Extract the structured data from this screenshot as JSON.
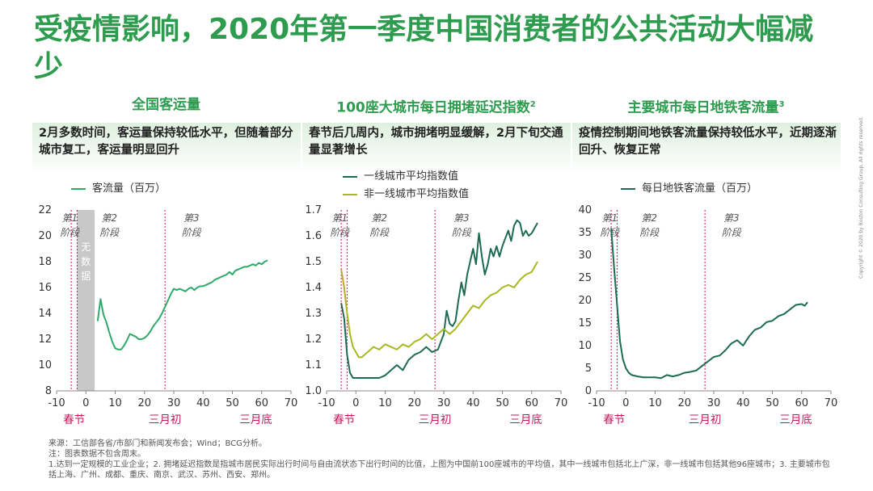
{
  "title": "受疫情影响，2020年第一季度中国消费者的公共活动大幅减少",
  "footer": {
    "source": "来源：工信部各省/市部门和新闻发布会；Wind；BCG分析。",
    "note": "注：图表数据不包含周末。",
    "footnotes": "1.达到一定规模的工业企业；2. 拥堵延迟指数是指城市居民实际出行时间与自由流状态下出行时间的比值，上图为中国前100座城市的平均值，其中一线城市包括北上广深，非一线城市包括其他96座城市；3. 主要城市包括上海、广州、成都、重庆、南京、武汉、苏州、西安、郑州。"
  },
  "copyright": "Copyright © 2020 by Boston Consulting Group. All rights reserved.",
  "panels": [
    {
      "title": "全国客运量",
      "sup": "",
      "box": "2月多数时间，客运量保持较低水平，但随着部分城市复工，客运量明显回升"
    },
    {
      "title": "100座大城市每日拥堵延迟指数",
      "sup": "2",
      "box": "春节后几周内，城市拥堵明显缓解，2月下旬交通量显著增长"
    },
    {
      "title": "主要城市每日地铁客流量",
      "sup": "3",
      "box": "疫情控制期间地铁客流量保持较低水平，近期逐渐回升、恢复正常"
    }
  ],
  "markers": {
    "spring_festival": "春节",
    "march_start": "三月初",
    "march_end": "三月底"
  },
  "phases": [
    [
      "第1",
      "阶段"
    ],
    [
      "第2",
      "阶段"
    ],
    [
      "第3",
      "阶段"
    ]
  ],
  "no_data_label": "无数据",
  "colors": {
    "title": "#2e9c4f",
    "series_primary": "#2eaa6b",
    "series_dark": "#1e6b54",
    "series_secondary": "#a8b820",
    "marker": "#c2185b",
    "nodata_fill": "#c8c8c8"
  },
  "chart_data": [
    {
      "type": "line",
      "xlim": [
        -10,
        70
      ],
      "xticks": [
        -10,
        0,
        10,
        20,
        30,
        40,
        50,
        60,
        70
      ],
      "ylim": [
        8,
        22
      ],
      "yticks": [
        8,
        10,
        12,
        14,
        16,
        18,
        20,
        22
      ],
      "yticklabels": [
        "8",
        "10",
        "12",
        "14",
        "16",
        "18",
        "20",
        "22"
      ],
      "no_data_range": [
        -3,
        3
      ],
      "vlines": [
        -5,
        -3,
        27
      ],
      "legend_position": "top-left",
      "series": [
        {
          "name": "客流量（百万）",
          "color": "#2eaa6b",
          "x": [
            4,
            5,
            6,
            7,
            8,
            9,
            10,
            11,
            12,
            13,
            14,
            15,
            16,
            17,
            18,
            19,
            20,
            21,
            22,
            23,
            24,
            25,
            26,
            27,
            28,
            29,
            30,
            31,
            32,
            33,
            34,
            35,
            36,
            37,
            38,
            39,
            40,
            41,
            42,
            43,
            44,
            45,
            46,
            47,
            48,
            49,
            50,
            51,
            52,
            53,
            54,
            55,
            56,
            57,
            58,
            59,
            60,
            61,
            62
          ],
          "y": [
            13.4,
            15.1,
            13.9,
            13.3,
            12.5,
            11.8,
            11.3,
            11.2,
            11.2,
            11.5,
            11.9,
            12.4,
            12.3,
            12.2,
            12.0,
            12.0,
            12.1,
            12.3,
            12.6,
            13.0,
            13.3,
            13.6,
            14.0,
            14.5,
            15.0,
            15.5,
            15.9,
            15.8,
            15.9,
            15.8,
            15.7,
            15.9,
            16.0,
            15.8,
            16.0,
            16.1,
            16.1,
            16.2,
            16.3,
            16.4,
            16.6,
            16.7,
            16.8,
            16.9,
            17.0,
            17.2,
            17.0,
            17.3,
            17.4,
            17.5,
            17.6,
            17.6,
            17.7,
            17.8,
            17.7,
            17.9,
            17.8,
            18.0,
            18.1
          ]
        }
      ]
    },
    {
      "type": "line",
      "xlim": [
        -10,
        70
      ],
      "xticks": [
        -10,
        0,
        10,
        20,
        30,
        40,
        50,
        60,
        70
      ],
      "ylim": [
        1.0,
        1.7
      ],
      "yticks": [
        1.0,
        1.1,
        1.2,
        1.3,
        1.4,
        1.5,
        1.6,
        1.7
      ],
      "yticklabels": [
        "1.0",
        "1.1",
        "1.2",
        "1.3",
        "1.4",
        "1.5",
        "1.6",
        "1.7"
      ],
      "vlines": [
        -5,
        -3,
        27
      ],
      "legend_position": "top-left",
      "series": [
        {
          "name": "一线城市平均指数值",
          "color": "#1e6b54",
          "x": [
            -5,
            -4,
            -3,
            -2,
            -1,
            0,
            2,
            4,
            6,
            8,
            10,
            12,
            14,
            16,
            18,
            20,
            22,
            24,
            26,
            28,
            30,
            31,
            32,
            33,
            34,
            35,
            36,
            37,
            38,
            39,
            40,
            41,
            42,
            43,
            44,
            45,
            46,
            47,
            48,
            49,
            50,
            51,
            52,
            53,
            54,
            55,
            56,
            57,
            58,
            59,
            60,
            61,
            62
          ],
          "y": [
            1.34,
            1.28,
            1.14,
            1.07,
            1.05,
            1.05,
            1.05,
            1.05,
            1.05,
            1.05,
            1.06,
            1.08,
            1.1,
            1.08,
            1.12,
            1.14,
            1.15,
            1.17,
            1.15,
            1.16,
            1.22,
            1.31,
            1.26,
            1.25,
            1.27,
            1.35,
            1.42,
            1.37,
            1.45,
            1.5,
            1.55,
            1.49,
            1.61,
            1.52,
            1.45,
            1.49,
            1.55,
            1.52,
            1.56,
            1.52,
            1.56,
            1.59,
            1.62,
            1.58,
            1.64,
            1.66,
            1.65,
            1.6,
            1.62,
            1.6,
            1.61,
            1.63,
            1.65
          ]
        },
        {
          "name": "非一线城市平均指数值",
          "color": "#a8b820",
          "x": [
            -5,
            -4,
            -3,
            -2,
            -1,
            0,
            1,
            2,
            4,
            6,
            8,
            10,
            12,
            14,
            16,
            18,
            20,
            22,
            24,
            26,
            28,
            30,
            32,
            34,
            36,
            38,
            40,
            42,
            44,
            46,
            48,
            50,
            52,
            54,
            56,
            58,
            60,
            62
          ],
          "y": [
            1.47,
            1.4,
            1.3,
            1.22,
            1.17,
            1.15,
            1.13,
            1.13,
            1.15,
            1.17,
            1.16,
            1.18,
            1.17,
            1.16,
            1.18,
            1.17,
            1.19,
            1.2,
            1.22,
            1.2,
            1.22,
            1.24,
            1.22,
            1.24,
            1.27,
            1.3,
            1.33,
            1.32,
            1.35,
            1.37,
            1.38,
            1.4,
            1.41,
            1.4,
            1.43,
            1.45,
            1.46,
            1.5
          ]
        }
      ]
    },
    {
      "type": "line",
      "xlim": [
        -10,
        70
      ],
      "xticks": [
        -10,
        0,
        10,
        20,
        30,
        40,
        50,
        60,
        70
      ],
      "ylim": [
        0,
        40
      ],
      "yticks": [
        0,
        5,
        10,
        15,
        20,
        25,
        30,
        35,
        40
      ],
      "yticklabels": [
        "0",
        "5",
        "10",
        "15",
        "20",
        "25",
        "30",
        "35",
        "40"
      ],
      "vlines": [
        -5,
        -3,
        27
      ],
      "legend_position": "top-left",
      "series": [
        {
          "name": "每日地铁客流量（百万）",
          "color": "#1e6b54",
          "x": [
            -5,
            -4,
            -3,
            -2,
            -1,
            0,
            1,
            2,
            4,
            6,
            8,
            10,
            12,
            14,
            16,
            18,
            20,
            22,
            24,
            26,
            28,
            30,
            32,
            34,
            36,
            38,
            40,
            42,
            44,
            46,
            48,
            50,
            52,
            54,
            56,
            58,
            60,
            61,
            62
          ],
          "y": [
            36.0,
            27.0,
            19.0,
            11.0,
            7.0,
            5.0,
            4.0,
            3.5,
            3.2,
            3.0,
            3.0,
            3.0,
            2.8,
            3.5,
            3.2,
            3.5,
            4.0,
            4.2,
            4.5,
            5.5,
            6.5,
            7.5,
            7.8,
            9.0,
            10.5,
            11.2,
            10.0,
            12.0,
            13.5,
            14.0,
            15.2,
            15.5,
            16.5,
            17.0,
            18.0,
            19.0,
            19.2,
            18.8,
            19.6
          ]
        }
      ]
    }
  ]
}
